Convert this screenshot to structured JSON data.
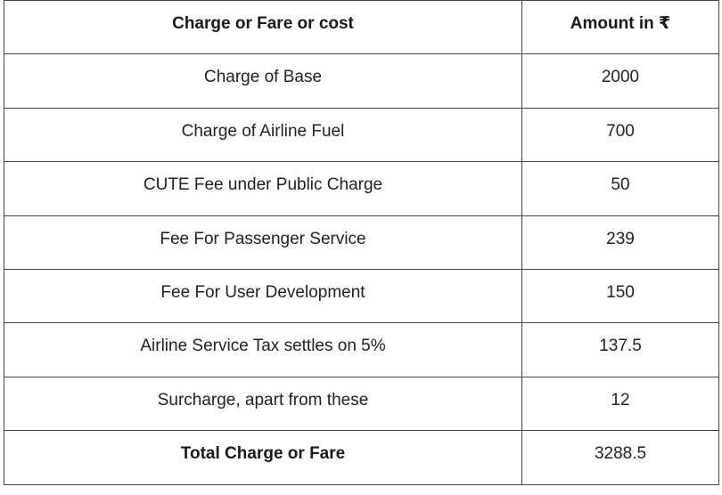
{
  "table": {
    "headers": [
      "Charge or Fare or cost",
      "Amount in ₹"
    ],
    "rows": [
      {
        "label": "Charge of Base",
        "amount": "2000"
      },
      {
        "label": "Charge of Airline Fuel",
        "amount": "700"
      },
      {
        "label": "CUTE Fee under Public Charge",
        "amount": "50"
      },
      {
        "label": "Fee For Passenger Service",
        "amount": "239"
      },
      {
        "label": "Fee For User Development",
        "amount": "150"
      },
      {
        "label": "Airline Service Tax settles on 5%",
        "amount": "137.5"
      },
      {
        "label": "Surcharge, apart from these",
        "amount": "12"
      }
    ],
    "total": {
      "label": "Total Charge or Fare",
      "amount": "3288.5"
    }
  }
}
